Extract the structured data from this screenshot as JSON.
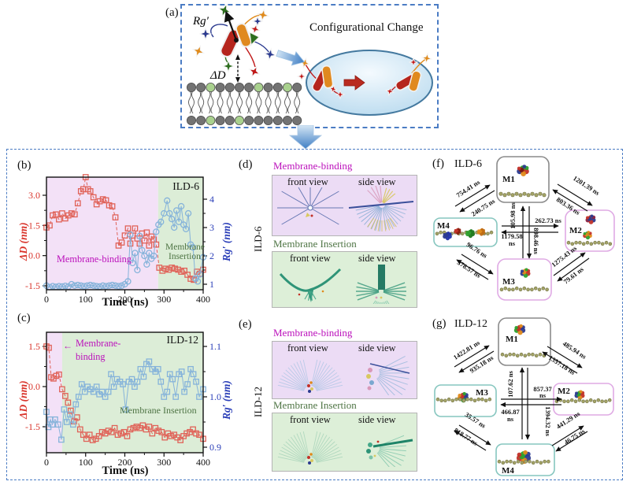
{
  "figure": {
    "panel_a": {
      "label": "(a)",
      "rg_label": "Rg′",
      "delta_d_label": "ΔD",
      "title": "Configurational Change"
    },
    "panel_b": {
      "label": "(b)",
      "title": "ILD-6",
      "binding_label": "Membrane-binding",
      "insertion_label_line1": "Membrane",
      "insertion_label_line2": "Insertion",
      "ylabel_left": "ΔD (nm)",
      "ylabel_right": "Rg′ (nm)",
      "xlabel": "Time (ns)"
    },
    "panel_c": {
      "label": "(c)",
      "title": "ILD-12",
      "binding_arrow": "←",
      "binding_label_line1": "Membrane-",
      "binding_label_line2": "binding",
      "insertion_label": "Membrane Insertion",
      "ylabel_left": "ΔD (nm)",
      "ylabel_right": "Rg′ (nm)",
      "xlabel": "Time (ns)"
    },
    "panel_d": {
      "label": "(d)",
      "row_label": "ILD-6",
      "binding_title": "Membrane-binding",
      "insertion_title": "Membrane Insertion",
      "front_view": "front view",
      "side_view": "side view"
    },
    "panel_e": {
      "label": "(e)",
      "row_label": "ILD-12",
      "binding_title": "Membrane-binding",
      "insertion_title": "Membrane Insertion",
      "front_view": "front view",
      "side_view": "side view"
    },
    "panel_f": {
      "label": "(f)",
      "title": "ILD-6",
      "states": {
        "m1": "M1",
        "m2": "M2",
        "m3": "M3",
        "m4": "M4"
      },
      "trans": {
        "m4_m1": "754.41 ns",
        "m1_m4": "240.75 ns",
        "m1_m2_out": "1201.39 ns",
        "m1_m2_in": "803.36 ns",
        "center_right": "262.73 ns",
        "center_left_value": "1179.58",
        "center_left_unit": "ns",
        "center_up": "105.98 ns",
        "center_down": "898.46 ns",
        "m4_m3_a": "96.76 ns",
        "m4_m3_b": "378.57 ns",
        "m3_m2_a": "1275.43 ns",
        "m3_m2_b": "79.61 ns"
      }
    },
    "panel_g": {
      "label": "(g)",
      "title": "ILD-12",
      "states": {
        "m1": "M1",
        "m2": "M2",
        "m3": "M3",
        "m4": "M4"
      },
      "trans": {
        "m3_m1": "1422.81 ns",
        "m1_m3": "935.18 ns",
        "m1_m2_out": "485.94 ns",
        "m1_m2_in": "1357.18 ns",
        "center_right_value": "857.37",
        "center_right_unit": "ns",
        "center_left_value": "466.87",
        "center_left_unit": "ns",
        "center_up": "107.62 ns",
        "center_down": "1394.32 ns",
        "m3_m4_a": "35.57 ns",
        "m3_m4_b": "818.77 ns",
        "m2_m4_a": "441.29 ns",
        "m2_m4_b": "46.75 ns"
      }
    }
  },
  "colors": {
    "dashed_border": "#4b7cc4",
    "delta_d_series": "#e06258",
    "rg_series": "#85b3da",
    "binding_bg": "#f3e1f7",
    "insertion_bg": "#dcedd7",
    "binding_text": "#bb10bb",
    "insertion_text": "#4e7444",
    "center_up_f": "#bb10bb",
    "center_up_g": "#2a9d8f"
  },
  "chart_data": [
    {
      "id": "b",
      "type": "scatter",
      "title": "ILD-6",
      "xlabel": "Time (ns)",
      "ylabel_left": "ΔD (nm)",
      "ylabel_right": "Rg′ (nm)",
      "xlim": [
        0,
        400
      ],
      "x_ticks": [
        0,
        100,
        200,
        300,
        400
      ],
      "left_ticks": [
        "3.0",
        "1.5",
        "0.0",
        "-1.5"
      ],
      "right_ticks": [
        "4",
        "3",
        "2",
        "1"
      ],
      "regions": [
        {
          "label": "Membrane-binding",
          "from": 0,
          "to": 285,
          "color": "#f3e1f7"
        },
        {
          "label": "Membrane Insertion",
          "from": 285,
          "to": 400,
          "color": "#dcedd7"
        }
      ],
      "series": [
        {
          "name": "DeltaD",
          "axis": "left",
          "color": "#e06258",
          "marker": "square",
          "line": "dashed",
          "x": [
            0,
            8,
            16,
            24,
            32,
            40,
            48,
            56,
            64,
            72,
            80,
            88,
            94,
            100,
            106,
            112,
            120,
            128,
            136,
            144,
            152,
            160,
            168,
            176,
            184,
            192,
            200,
            208,
            214,
            220,
            226,
            232,
            238,
            244,
            250,
            256,
            262,
            268,
            274,
            280,
            288,
            296,
            304,
            312,
            320,
            328,
            336,
            344,
            352,
            360,
            368,
            376,
            384,
            392,
            400
          ],
          "y": [
            1.4,
            1.5,
            2.0,
            2.05,
            1.8,
            2.1,
            1.85,
            2.0,
            2.1,
            2.05,
            2.6,
            3.2,
            3.3,
            3.9,
            3.3,
            3.2,
            2.9,
            2.55,
            2.7,
            2.8,
            2.75,
            2.5,
            2.45,
            1.9,
            0.5,
            0.65,
            1.0,
            1.35,
            0.6,
            1.0,
            1.35,
            0.85,
            0.6,
            1.1,
            0.75,
            1.15,
            0.5,
            0.95,
            0.8,
            0.55,
            -0.6,
            -0.75,
            -0.65,
            -0.7,
            -0.6,
            -0.65,
            -0.7,
            -0.8,
            -0.75,
            -0.95,
            -1.15,
            -1.2,
            -0.8,
            -0.9,
            -0.7
          ]
        },
        {
          "name": "Rg",
          "axis": "right",
          "color": "#85b3da",
          "marker": "circle",
          "line": "solid",
          "x": [
            0,
            8,
            16,
            24,
            32,
            40,
            48,
            56,
            64,
            72,
            80,
            88,
            96,
            104,
            112,
            120,
            128,
            136,
            144,
            152,
            160,
            168,
            176,
            184,
            192,
            200,
            208,
            214,
            220,
            226,
            232,
            238,
            244,
            250,
            256,
            262,
            268,
            274,
            280,
            286,
            292,
            300,
            308,
            314,
            320,
            326,
            332,
            338,
            344,
            350,
            356,
            362,
            368,
            374,
            380,
            386,
            392,
            400
          ],
          "y": [
            0.95,
            0.9,
            0.93,
            0.91,
            0.93,
            0.92,
            0.94,
            0.92,
            1.0,
            0.95,
            0.97,
            0.95,
            0.93,
            0.95,
            0.97,
            0.95,
            0.93,
            0.92,
            0.95,
            0.93,
            0.95,
            0.97,
            0.95,
            0.93,
            0.95,
            1.0,
            1.1,
            2.75,
            1.75,
            2.1,
            1.5,
            2.7,
            2.2,
            2.0,
            1.7,
            2.1,
            1.9,
            2.0,
            2.85,
            3.1,
            3.2,
            3.5,
            3.95,
            3.5,
            3.3,
            3.0,
            3.6,
            3.2,
            3.75,
            3.1,
            2.95,
            3.5,
            2.4,
            2.3,
            1.2,
            1.1,
            1.35,
            1.95
          ]
        }
      ]
    },
    {
      "id": "c",
      "type": "scatter",
      "title": "ILD-12",
      "xlabel": "Time (ns)",
      "ylabel_left": "ΔD (nm)",
      "ylabel_right": "Rg′ (nm)",
      "xlim": [
        0,
        400
      ],
      "x_ticks": [
        0,
        100,
        200,
        300,
        400
      ],
      "left_ticks": [
        "1.5",
        "0.0",
        "-1.5"
      ],
      "right_ticks": [
        "1.1",
        "1.0",
        "0.9"
      ],
      "regions": [
        {
          "label": "Membrane-binding",
          "from": 0,
          "to": 40,
          "color": "#f3e1f7"
        },
        {
          "label": "Membrane Insertion",
          "from": 40,
          "to": 400,
          "color": "#dcedd7"
        }
      ],
      "series": [
        {
          "name": "DeltaD",
          "axis": "left",
          "color": "#e06258",
          "marker": "square",
          "line": "dashed",
          "x": [
            0,
            6,
            12,
            18,
            25,
            32,
            40,
            48,
            55,
            62,
            70,
            78,
            86,
            94,
            102,
            110,
            118,
            126,
            134,
            142,
            150,
            158,
            166,
            174,
            182,
            190,
            198,
            206,
            214,
            222,
            230,
            238,
            246,
            254,
            262,
            270,
            278,
            286,
            294,
            302,
            310,
            318,
            326,
            334,
            342,
            350,
            358,
            366,
            374,
            382,
            390,
            400
          ],
          "y": [
            1.5,
            1.45,
            0.35,
            0.3,
            0.4,
            0.45,
            -0.1,
            -0.35,
            -0.6,
            -0.9,
            -1.3,
            -1.15,
            -1.6,
            -1.8,
            -1.95,
            -1.8,
            -2.0,
            -1.95,
            -1.85,
            -1.7,
            -1.75,
            -1.65,
            -1.7,
            -1.55,
            -1.8,
            -1.75,
            -1.7,
            -1.85,
            -1.6,
            -1.55,
            -1.5,
            -1.55,
            -1.45,
            -1.6,
            -1.5,
            -1.75,
            -1.55,
            -1.65,
            -1.7,
            -1.9,
            -1.75,
            -1.85,
            -1.8,
            -1.9,
            -2.0,
            -1.85,
            -1.75,
            -1.7,
            -1.6,
            -1.75,
            -1.8,
            -1.95
          ]
        },
        {
          "name": "Rg",
          "axis": "right",
          "color": "#85b3da",
          "marker": "square",
          "line": "solid",
          "x": [
            0,
            5,
            10,
            15,
            22,
            30,
            38,
            45,
            52,
            60,
            68,
            75,
            82,
            90,
            98,
            105,
            112,
            120,
            128,
            135,
            142,
            150,
            158,
            165,
            172,
            180,
            188,
            195,
            202,
            210,
            218,
            225,
            232,
            240,
            248,
            255,
            262,
            270,
            278,
            285,
            292,
            300,
            308,
            315,
            322,
            330,
            338,
            345,
            352,
            360,
            368,
            375,
            382,
            390,
            400
          ],
          "y": [
            0.97,
            0.94,
            0.955,
            0.945,
            0.955,
            0.945,
            0.915,
            0.975,
            0.95,
            0.965,
            0.945,
            0.985,
            1.0,
            1.025,
            1.01,
            1.02,
            1.015,
            1.01,
            1.02,
            1.005,
            1.01,
            1.0,
            1.01,
            1.045,
            1.02,
            1.035,
            1.03,
            1.025,
            0.975,
            1.03,
            1.035,
            1.02,
            1.03,
            1.055,
            1.04,
            1.065,
            1.07,
            1.055,
            1.05,
            1.055,
            1.03,
            1.0,
            1.01,
            1.045,
            1.035,
            1.0,
            1.045,
            1.05,
            1.01,
            1.025,
            1.055,
            1.045,
            1.03,
            1.0,
            1.015
          ]
        }
      ]
    }
  ]
}
